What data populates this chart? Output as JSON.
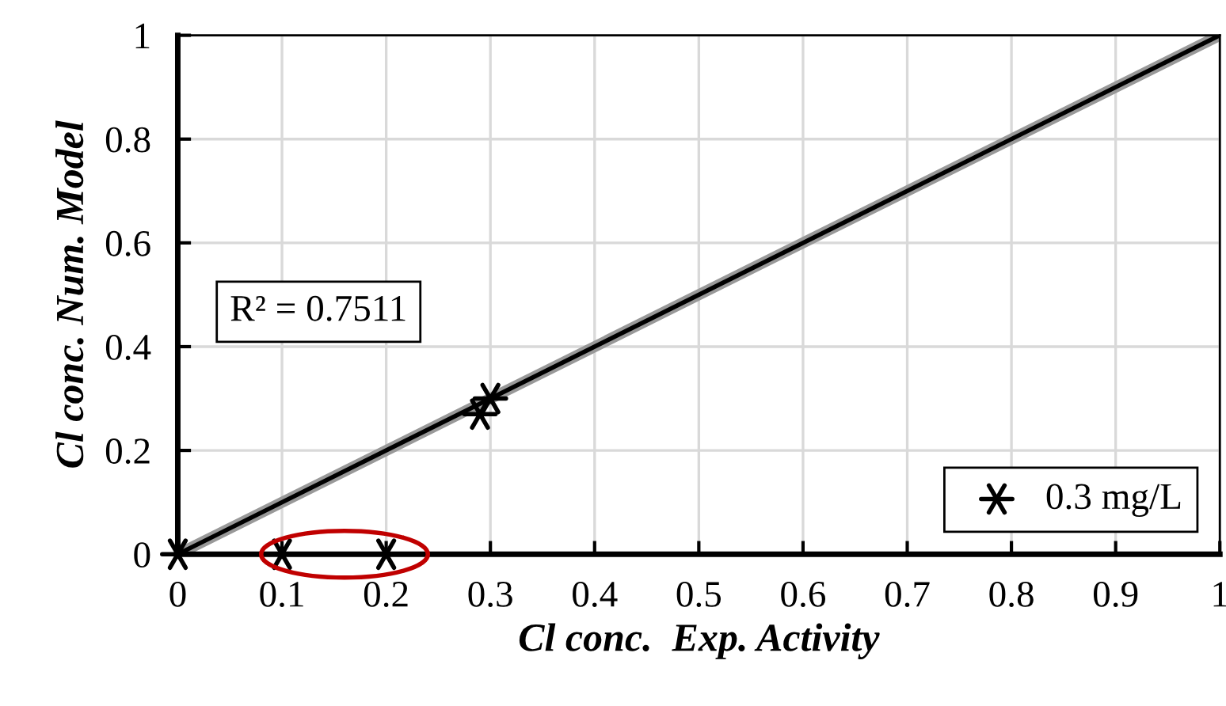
{
  "chart_data": {
    "type": "scatter",
    "xlabel": "Cl conc.  Exp. Activity",
    "ylabel": "Cl conc. Num. Model",
    "series": [
      {
        "name": "0.3 mg/L",
        "color": "#000000",
        "x": [
          0,
          0.1,
          0.2,
          0.29,
          0.3
        ],
        "values": [
          0,
          0,
          0,
          0.27,
          0.3
        ],
        "marker": "cross"
      },
      {
        "type": "line",
        "color": "#000000",
        "x": [
          0,
          1
        ],
        "values": [
          0,
          1
        ],
        "marker": "none"
      }
    ],
    "annotations": [
      "R² = 0.7511"
    ],
    "xlim": [
      0,
      1
    ],
    "xticks": [
      0,
      0.1,
      0.2,
      0.3,
      0.4,
      0.5,
      0.6,
      0.7,
      0.8,
      0.9,
      1
    ],
    "ylim": [
      0,
      1
    ],
    "yticks": [
      0,
      0.2,
      0.4,
      0.6,
      0.8,
      1
    ],
    "grid": true,
    "legend": "bottom right"
  }
}
